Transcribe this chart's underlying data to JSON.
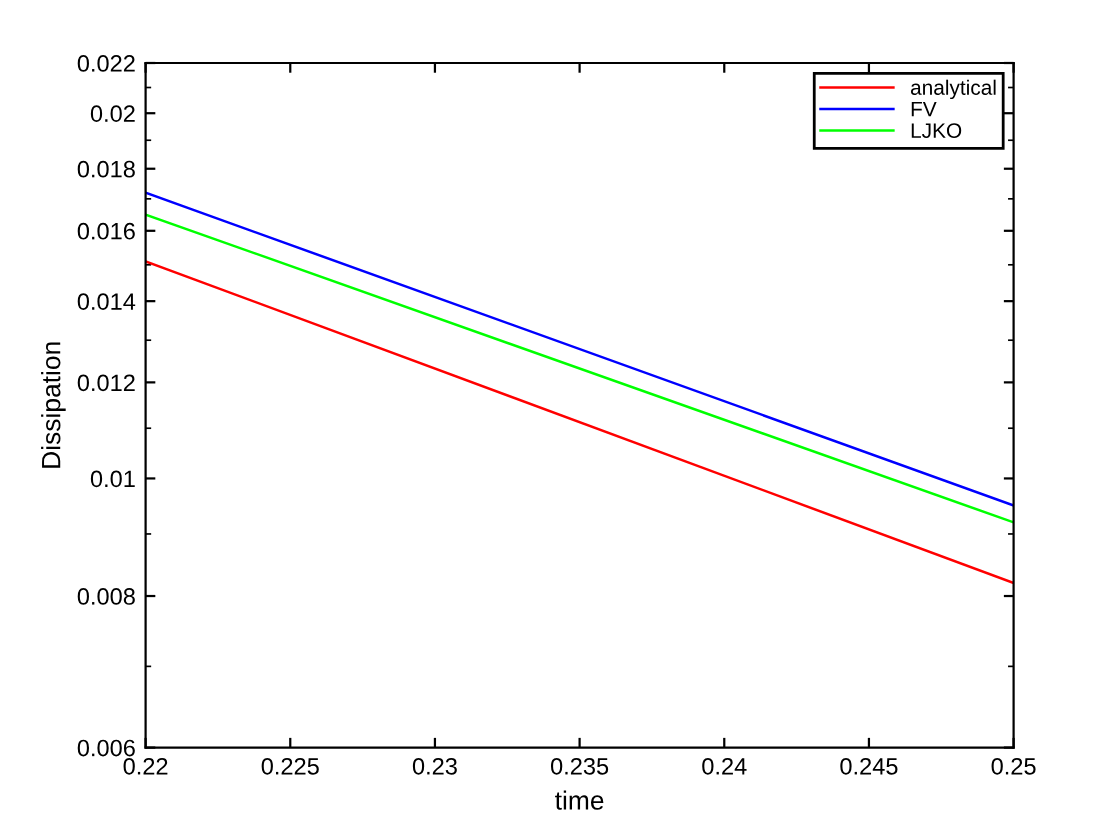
{
  "chart_data": {
    "type": "line",
    "xlabel": "time",
    "ylabel": "Dissipation",
    "log": "y",
    "legend": "top right",
    "grid": false,
    "x": [
      0.22,
      0.25
    ],
    "series": [
      {
        "name": "analytical",
        "color": "#ff0000",
        "values": [
          0.0151,
          0.0082
        ]
      },
      {
        "name": "FV",
        "color": "#0000ff",
        "values": [
          0.0172,
          0.0095
        ]
      },
      {
        "name": "LJKO",
        "color": "#00ff00",
        "values": [
          0.0165,
          0.0092
        ]
      }
    ],
    "xlim": [
      0.22,
      0.25
    ],
    "xticks": [
      0.22,
      0.225,
      0.23,
      0.235,
      0.24,
      0.245,
      0.25
    ],
    "ylim": [
      0.006,
      0.022
    ],
    "yticks": [
      0.006,
      0.008,
      0.01,
      0.012,
      0.014,
      0.016,
      0.018,
      0.02,
      0.022
    ]
  }
}
